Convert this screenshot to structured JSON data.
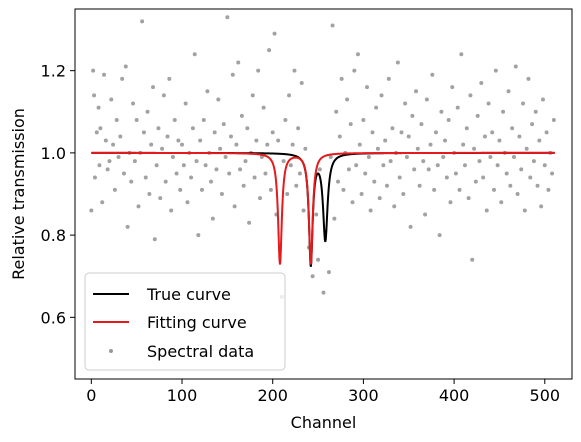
{
  "chart_data": {
    "type": "line",
    "title": "",
    "xlabel": "Channel",
    "ylabel": "Relative transmission",
    "xlim": [
      -18,
      530
    ],
    "ylim": [
      0.45,
      1.35
    ],
    "xticks": [
      0,
      100,
      200,
      300,
      400,
      500
    ],
    "yticks": [
      0.6,
      0.8,
      1.0,
      1.2
    ],
    "xtick_labels": [
      "0",
      "100",
      "200",
      "300",
      "400",
      "500"
    ],
    "ytick_labels": [
      "0.6",
      "0.8",
      "1.0",
      "1.2"
    ],
    "grid": false,
    "legend_position": "lower-left",
    "series": [
      {
        "name": "True curve",
        "style": "line",
        "color": "#000000",
        "baseline": 1.0,
        "x_range": [
          0,
          511
        ],
        "dips": [
          {
            "center": 242,
            "depth": 0.27,
            "width": 2.5
          },
          {
            "center": 258,
            "depth": 0.21,
            "width": 3.0
          }
        ]
      },
      {
        "name": "Fitting curve",
        "style": "line",
        "color": "#e41a1c",
        "baseline": 1.0,
        "x_range": [
          0,
          511
        ],
        "dips": [
          {
            "center": 208,
            "depth": 0.27,
            "width": 2.5
          },
          {
            "center": 242,
            "depth": 0.27,
            "width": 2.5
          }
        ]
      },
      {
        "name": "Spectral data",
        "style": "scatter",
        "color": "#555555",
        "points": [
          [
            0,
            0.86
          ],
          [
            2,
            1.2
          ],
          [
            3,
            1.14
          ],
          [
            4,
            0.94
          ],
          [
            6,
            1.05
          ],
          [
            8,
            1.11
          ],
          [
            9,
            0.97
          ],
          [
            10,
            1.06
          ],
          [
            12,
            0.88
          ],
          [
            14,
            1.19
          ],
          [
            16,
            1.03
          ],
          [
            18,
            0.96
          ],
          [
            20,
            0.98
          ],
          [
            22,
            1.13
          ],
          [
            24,
            1.02
          ],
          [
            26,
            0.91
          ],
          [
            28,
            1.08
          ],
          [
            30,
            0.99
          ],
          [
            32,
            1.04
          ],
          [
            34,
            1.18
          ],
          [
            36,
            0.95
          ],
          [
            38,
            1.21
          ],
          [
            40,
            0.82
          ],
          [
            42,
            1.0
          ],
          [
            44,
            0.93
          ],
          [
            46,
            1.12
          ],
          [
            48,
            0.98
          ],
          [
            50,
            1.08
          ],
          [
            52,
            0.87
          ],
          [
            54,
            1.0
          ],
          [
            56,
            1.32
          ],
          [
            58,
            1.05
          ],
          [
            60,
            0.94
          ],
          [
            62,
            1.1
          ],
          [
            64,
            0.9
          ],
          [
            66,
            1.02
          ],
          [
            68,
            1.16
          ],
          [
            70,
            0.79
          ],
          [
            72,
            0.97
          ],
          [
            74,
            1.06
          ],
          [
            76,
            0.89
          ],
          [
            78,
            1.01
          ],
          [
            80,
            1.14
          ],
          [
            82,
            0.93
          ],
          [
            84,
            1.04
          ],
          [
            86,
            1.18
          ],
          [
            88,
            0.86
          ],
          [
            90,
            0.99
          ],
          [
            92,
            1.08
          ],
          [
            94,
            0.95
          ],
          [
            96,
            1.03
          ],
          [
            98,
            0.91
          ],
          [
            100,
            1.02
          ],
          [
            102,
            0.97
          ],
          [
            104,
            1.12
          ],
          [
            106,
            0.88
          ],
          [
            108,
            1.0
          ],
          [
            110,
            0.94
          ],
          [
            112,
            1.06
          ],
          [
            114,
            1.24
          ],
          [
            116,
            0.98
          ],
          [
            118,
            0.8
          ],
          [
            120,
            1.03
          ],
          [
            122,
            0.91
          ],
          [
            124,
            1.08
          ],
          [
            126,
            0.97
          ],
          [
            128,
            1.15
          ],
          [
            130,
            1.0
          ],
          [
            132,
            0.93
          ],
          [
            134,
            0.84
          ],
          [
            136,
            1.05
          ],
          [
            138,
            0.96
          ],
          [
            140,
            1.13
          ],
          [
            142,
            1.01
          ],
          [
            144,
            0.9
          ],
          [
            146,
            1.07
          ],
          [
            148,
            0.99
          ],
          [
            150,
            1.33
          ],
          [
            152,
            0.95
          ],
          [
            154,
            1.04
          ],
          [
            156,
            1.19
          ],
          [
            158,
            0.87
          ],
          [
            160,
            1.02
          ],
          [
            162,
            1.22
          ],
          [
            164,
            0.96
          ],
          [
            166,
            1.09
          ],
          [
            168,
            0.92
          ],
          [
            170,
            0.98
          ],
          [
            172,
            1.06
          ],
          [
            174,
            0.83
          ],
          [
            176,
            1.0
          ],
          [
            178,
            1.14
          ],
          [
            180,
            0.94
          ],
          [
            182,
            1.03
          ],
          [
            184,
            1.2
          ],
          [
            186,
            0.89
          ],
          [
            188,
            0.99
          ],
          [
            190,
            1.11
          ],
          [
            192,
            0.95
          ],
          [
            194,
            1.02
          ],
          [
            196,
            1.25
          ],
          [
            198,
            0.91
          ],
          [
            200,
            1.05
          ],
          [
            202,
            1.29
          ],
          [
            204,
            0.85
          ],
          [
            206,
            1.03
          ],
          [
            210,
            0.65
          ],
          [
            212,
            0.98
          ],
          [
            214,
            1.08
          ],
          [
            216,
            0.9
          ],
          [
            218,
            1.14
          ],
          [
            220,
            0.97
          ],
          [
            222,
            1.02
          ],
          [
            224,
            1.2
          ],
          [
            226,
            0.92
          ],
          [
            228,
            1.06
          ],
          [
            230,
            0.95
          ],
          [
            232,
            1.17
          ],
          [
            234,
            0.86
          ],
          [
            236,
            1.01
          ],
          [
            240,
            0.77
          ],
          [
            244,
            0.7
          ],
          [
            248,
            0.85
          ],
          [
            250,
            0.74
          ],
          [
            252,
            0.96
          ],
          [
            256,
            0.66
          ],
          [
            258,
            0.81
          ],
          [
            262,
            0.71
          ],
          [
            264,
            0.99
          ],
          [
            266,
            1.31
          ],
          [
            268,
            0.84
          ],
          [
            270,
            1.1
          ],
          [
            272,
            0.93
          ],
          [
            274,
            1.04
          ],
          [
            276,
            1.18
          ],
          [
            278,
            0.91
          ],
          [
            280,
            1.0
          ],
          [
            282,
            1.13
          ],
          [
            284,
            0.96
          ],
          [
            286,
            1.07
          ],
          [
            288,
            0.88
          ],
          [
            290,
            1.2
          ],
          [
            292,
            0.97
          ],
          [
            294,
            1.24
          ],
          [
            296,
            1.02
          ],
          [
            298,
            0.9
          ],
          [
            300,
            1.08
          ],
          [
            302,
            0.95
          ],
          [
            304,
            1.16
          ],
          [
            306,
            0.99
          ],
          [
            308,
            0.86
          ],
          [
            310,
            1.05
          ],
          [
            312,
            0.93
          ],
          [
            314,
            1.11
          ],
          [
            316,
            1.01
          ],
          [
            318,
            0.89
          ],
          [
            320,
            1.14
          ],
          [
            322,
            0.97
          ],
          [
            324,
            1.03
          ],
          [
            326,
            0.92
          ],
          [
            328,
            1.18
          ],
          [
            330,
            0.98
          ],
          [
            332,
            1.06
          ],
          [
            334,
            0.87
          ],
          [
            336,
            1.0
          ],
          [
            338,
            1.22
          ],
          [
            340,
            0.94
          ],
          [
            342,
            1.05
          ],
          [
            344,
            0.9
          ],
          [
            346,
            1.12
          ],
          [
            348,
            0.99
          ],
          [
            350,
            1.04
          ],
          [
            352,
            0.82
          ],
          [
            354,
            1.09
          ],
          [
            356,
            0.96
          ],
          [
            358,
            1.15
          ],
          [
            360,
            1.01
          ],
          [
            362,
            0.92
          ],
          [
            364,
            1.07
          ],
          [
            366,
            0.98
          ],
          [
            368,
            0.85
          ],
          [
            370,
            1.13
          ],
          [
            372,
            0.96
          ],
          [
            374,
            1.02
          ],
          [
            376,
            1.19
          ],
          [
            378,
            0.91
          ],
          [
            380,
            1.05
          ],
          [
            382,
            0.97
          ],
          [
            384,
            0.8
          ],
          [
            386,
            1.1
          ],
          [
            388,
            0.99
          ],
          [
            390,
            1.03
          ],
          [
            392,
            0.94
          ],
          [
            394,
            1.08
          ],
          [
            396,
            0.88
          ],
          [
            398,
            1.16
          ],
          [
            400,
            1.0
          ],
          [
            402,
            0.95
          ],
          [
            404,
            1.11
          ],
          [
            406,
            0.91
          ],
          [
            408,
            1.24
          ],
          [
            410,
            1.02
          ],
          [
            412,
            0.97
          ],
          [
            414,
            1.06
          ],
          [
            416,
            0.89
          ],
          [
            418,
            1.14
          ],
          [
            420,
            0.74
          ],
          [
            422,
            1.01
          ],
          [
            424,
            0.93
          ],
          [
            426,
            1.09
          ],
          [
            428,
            0.98
          ],
          [
            430,
            1.17
          ],
          [
            432,
            0.94
          ],
          [
            434,
            1.04
          ],
          [
            436,
            0.86
          ],
          [
            438,
            1.12
          ],
          [
            440,
            0.99
          ],
          [
            442,
            1.05
          ],
          [
            444,
            0.91
          ],
          [
            446,
            1.2
          ],
          [
            448,
            0.97
          ],
          [
            450,
            1.03
          ],
          [
            452,
            0.88
          ],
          [
            454,
            1.1
          ],
          [
            456,
            1.0
          ],
          [
            458,
            0.95
          ],
          [
            460,
            1.15
          ],
          [
            462,
            0.92
          ],
          [
            464,
            1.06
          ],
          [
            466,
            0.99
          ],
          [
            468,
            1.21
          ],
          [
            470,
            0.9
          ],
          [
            472,
            1.04
          ],
          [
            474,
            0.96
          ],
          [
            476,
            1.12
          ],
          [
            478,
            0.86
          ],
          [
            480,
            1.01
          ],
          [
            482,
            1.18
          ],
          [
            484,
            0.94
          ],
          [
            486,
            1.07
          ],
          [
            488,
            0.98
          ],
          [
            490,
            1.1
          ],
          [
            492,
            0.92
          ],
          [
            494,
            1.03
          ],
          [
            496,
            0.87
          ],
          [
            498,
            1.13
          ],
          [
            500,
            0.97
          ],
          [
            502,
            1.05
          ],
          [
            504,
            0.91
          ],
          [
            506,
            1.0
          ],
          [
            508,
            0.95
          ],
          [
            510,
            1.08
          ]
        ]
      }
    ]
  }
}
